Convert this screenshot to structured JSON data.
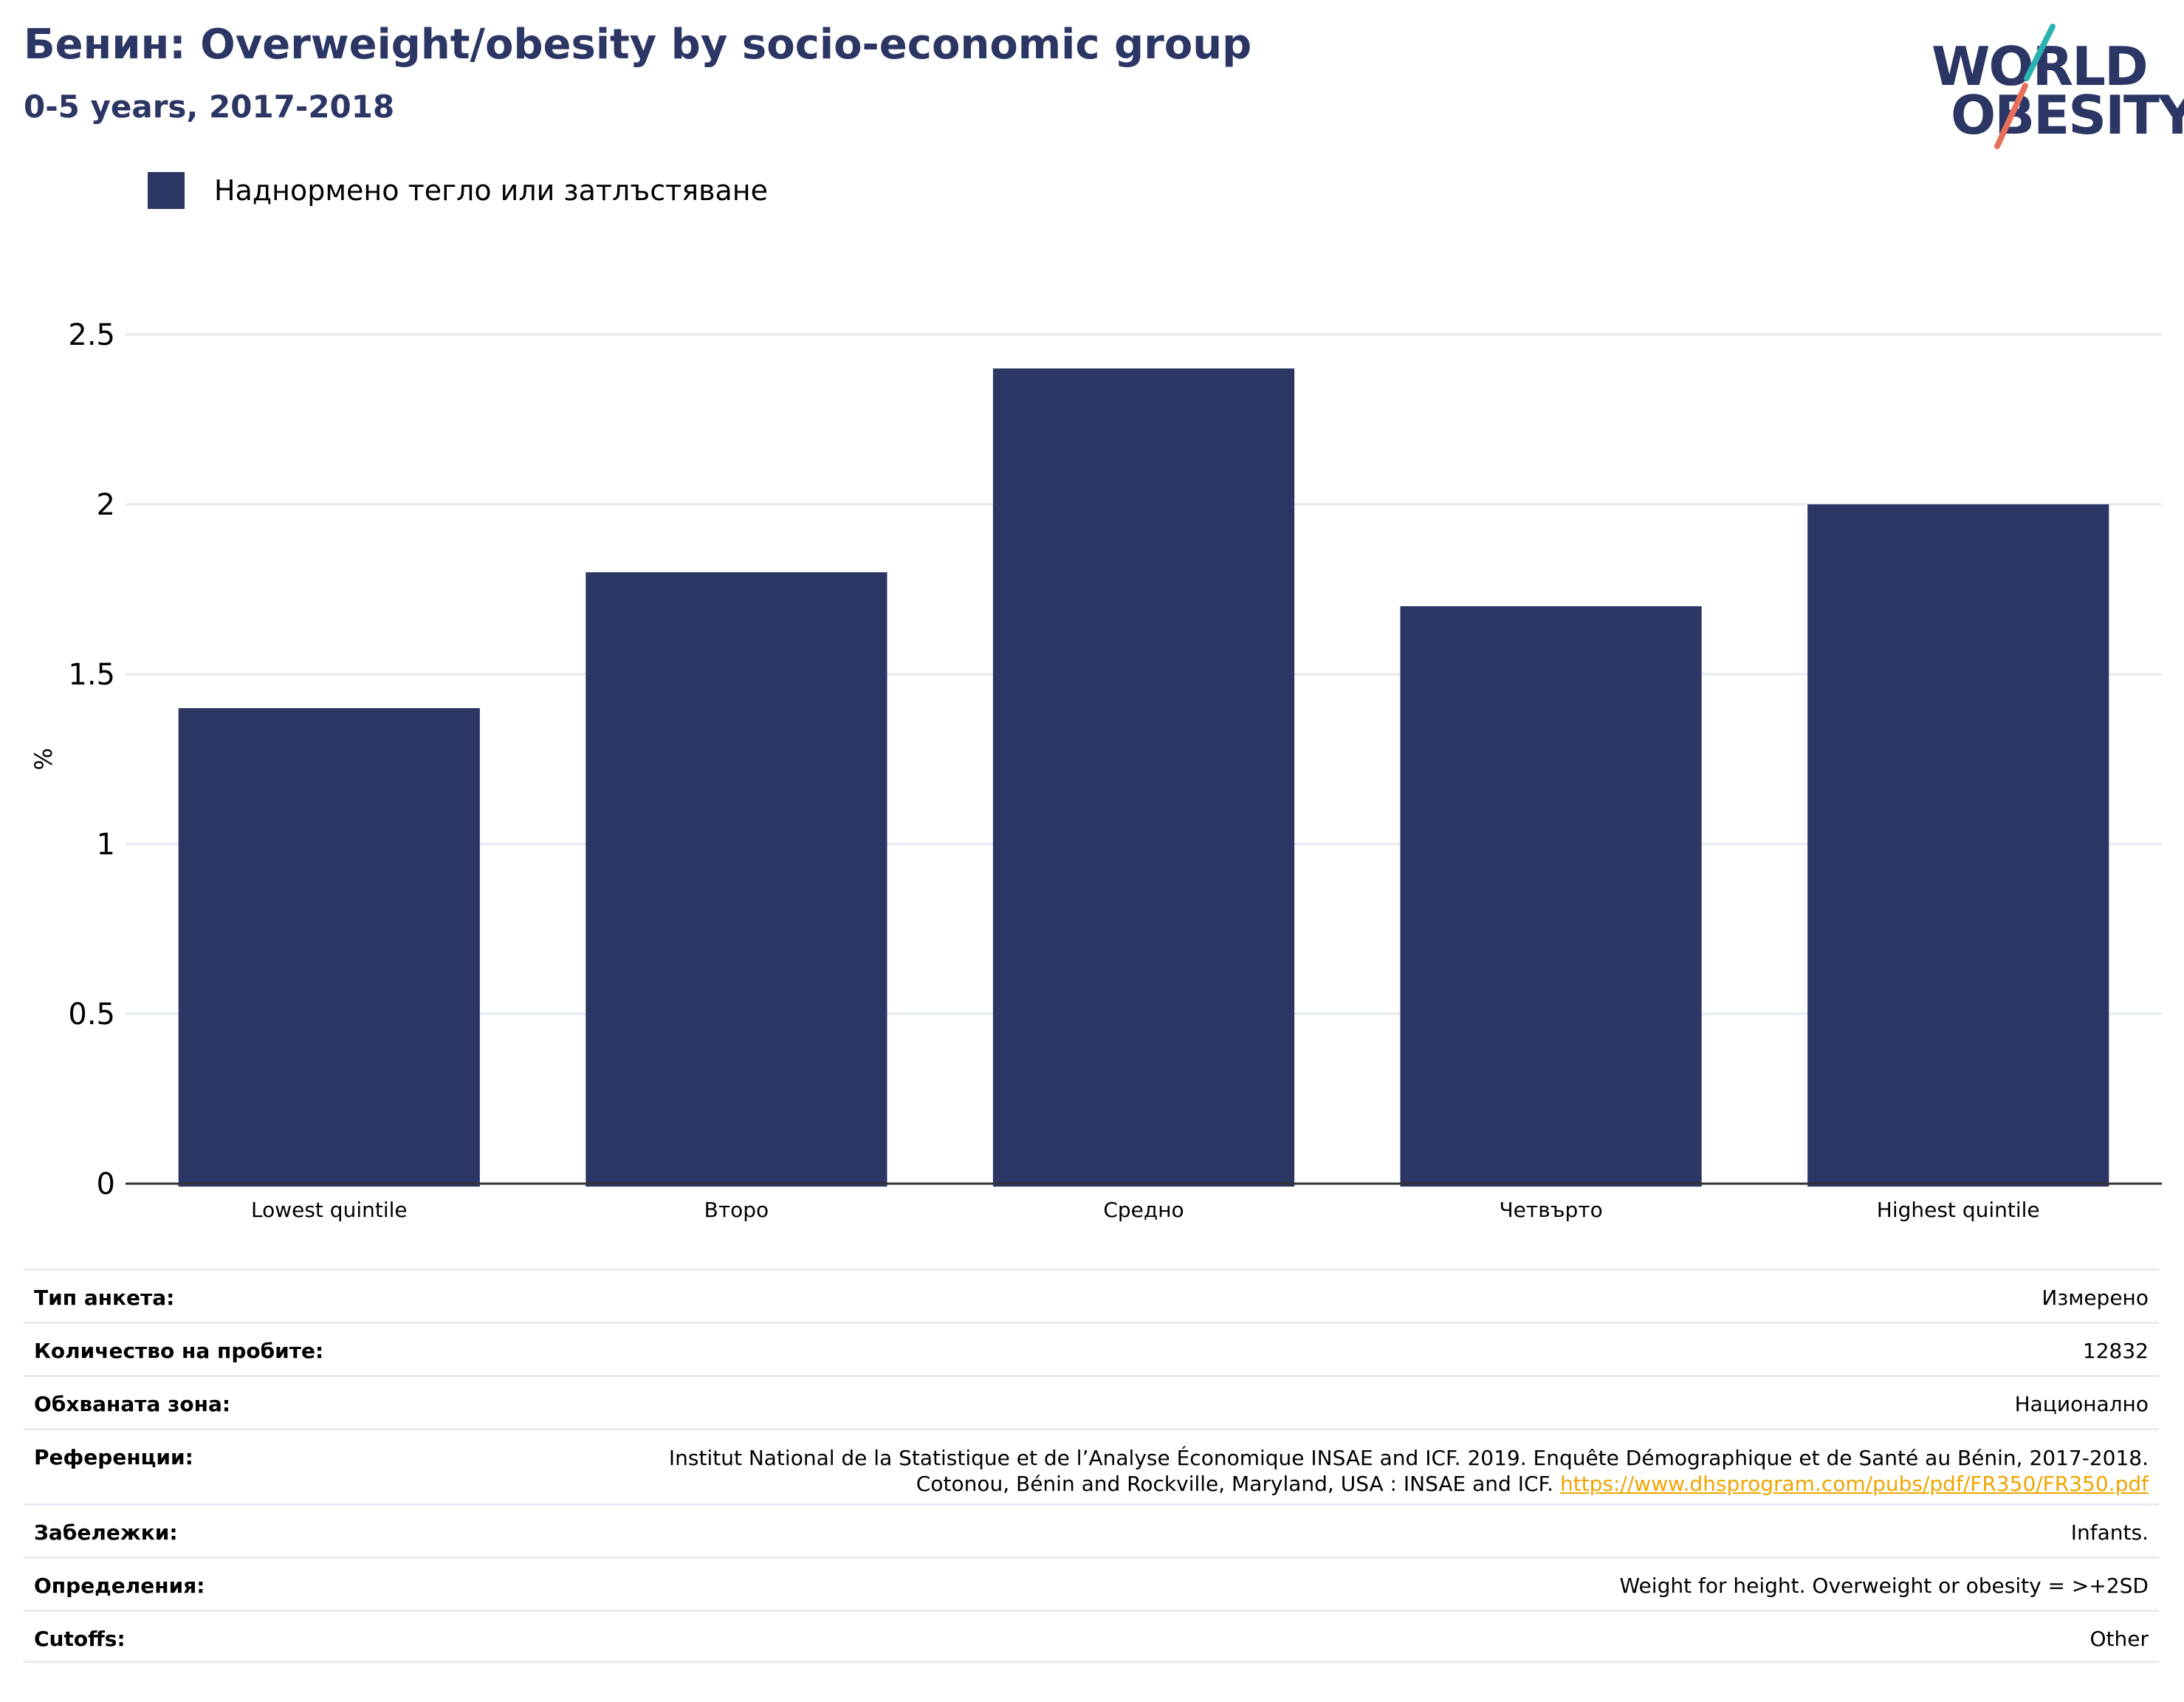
{
  "header": {
    "title": "Бенин: Overweight/obesity by socio-economic group",
    "subtitle": "0-5 years, 2017-2018"
  },
  "logo": {
    "line1": "WORLD",
    "line2": "OBESITY"
  },
  "colors": {
    "bar": "#2b3664",
    "title": "#2b3664",
    "grid": "#e6e9f0",
    "link": "#f0a500",
    "logo_teal": "#2bb3b1",
    "logo_coral": "#e8705a"
  },
  "chart_data": {
    "type": "bar",
    "categories": [
      "Lowest quintile",
      "Второ",
      "Средно",
      "Четвърто",
      "Highest quintile"
    ],
    "series": [
      {
        "name": "Наднормено тегло или затлъстяване",
        "values": [
          1.4,
          1.8,
          2.4,
          1.7,
          2.0
        ]
      }
    ],
    "ylabel": "%",
    "ylim": [
      0,
      2.5
    ],
    "yticks": [
      "0",
      "0.5",
      "1",
      "1.5",
      "2",
      "2.5"
    ],
    "grid": true,
    "legend": "top-left"
  },
  "info": [
    {
      "label": "Тип анкета:",
      "value": "Измерено"
    },
    {
      "label": "Количество на пробите:",
      "value": "12832"
    },
    {
      "label": "Обхваната зона:",
      "value": "Национално"
    },
    {
      "label": "Референции:",
      "value": "Institut National de la Statistique et de l’Analyse Économique INSAE and ICF. 2019. Enquête Démographique et de Santé au Bénin, 2017-2018. Cotonou, Bénin and Rockville, Maryland, USA : INSAE and ICF.",
      "link": "https://www.dhsprogram.com/pubs/pdf/FR350/FR350.pdf"
    },
    {
      "label": "Забележки:",
      "value": "Infants."
    },
    {
      "label": "Определения:",
      "value": "Weight for height. Overweight or obesity = >+2SD"
    },
    {
      "label": "Cutoffs:",
      "value": "Other"
    }
  ]
}
